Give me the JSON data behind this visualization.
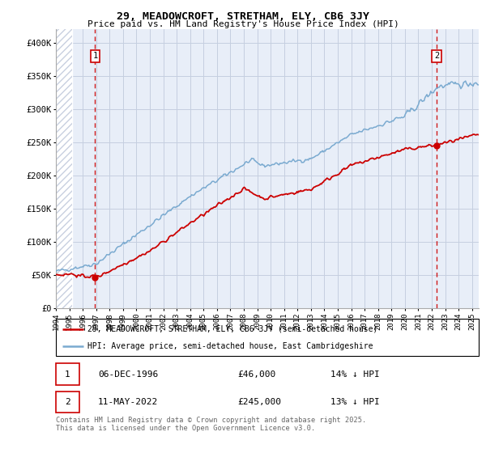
{
  "title1": "29, MEADOWCROFT, STRETHAM, ELY, CB6 3JY",
  "title2": "Price paid vs. HM Land Registry's House Price Index (HPI)",
  "legend1": "29, MEADOWCROFT, STRETHAM, ELY, CB6 3JY (semi-detached house)",
  "legend2": "HPI: Average price, semi-detached house, East Cambridgeshire",
  "footer": "Contains HM Land Registry data © Crown copyright and database right 2025.\nThis data is licensed under the Open Government Licence v3.0.",
  "annotation1": {
    "num": "1",
    "date": "06-DEC-1996",
    "price": "£46,000",
    "hpi": "14% ↓ HPI"
  },
  "annotation2": {
    "num": "2",
    "date": "11-MAY-2022",
    "price": "£245,000",
    "hpi": "13% ↓ HPI"
  },
  "xlim_years": [
    1994,
    2025.5
  ],
  "ylim": [
    0,
    420000
  ],
  "yticks": [
    0,
    50000,
    100000,
    150000,
    200000,
    250000,
    300000,
    350000,
    400000
  ],
  "ytick_labels": [
    "£0",
    "£50K",
    "£100K",
    "£150K",
    "£200K",
    "£250K",
    "£300K",
    "£350K",
    "£400K"
  ],
  "bg_color": "#e8eef8",
  "hatch_color": "#c8d0e0",
  "grid_color": "#c5cfe0",
  "red_line_color": "#cc0000",
  "blue_line_color": "#7aaad0",
  "annotation_color": "#cc0000",
  "point1_x": 1996.92,
  "point1_y": 46000,
  "point2_x": 2022.36,
  "point2_y": 245000
}
